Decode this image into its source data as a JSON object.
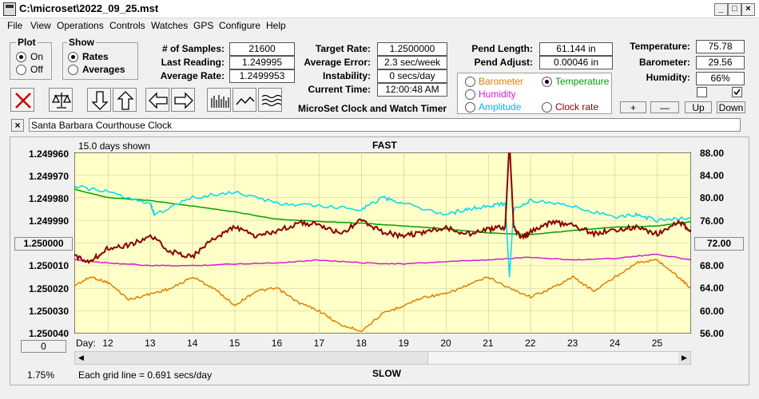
{
  "window": {
    "title": "C:\\microset\\2022_09_25.mst"
  },
  "menu": [
    "File",
    "View",
    "Operations",
    "Controls",
    "Watches",
    "GPS",
    "Configure",
    "Help"
  ],
  "plot": {
    "label": "Plot",
    "on": "On",
    "off": "Off",
    "selected": "on"
  },
  "show": {
    "label": "Show",
    "rates": "Rates",
    "averages": "Averages",
    "selected": "rates"
  },
  "stats": {
    "samples_label": "# of Samples:",
    "samples": "21600",
    "last_label": "Last Reading:",
    "last": "1.249995",
    "avg_label": "Average Rate:",
    "avg": "1.2499953",
    "target_label": "Target Rate:",
    "target": "1.2500000",
    "error_label": "Average Error:",
    "error": "2.3 sec/week",
    "instab_label": "Instability:",
    "instab": "0 secs/day",
    "time_label": "Current Time:",
    "time": "12:00:48 AM",
    "pendlen_label": "Pend Length:",
    "pendlen": "61.144 in",
    "pendadj_label": "Pend Adjust:",
    "pendadj": "0.00046 in",
    "temp_label": "Temperature:",
    "temp": "75.78",
    "baro_label": "Barometer:",
    "baro": "29.56",
    "hum_label": "Humidity:",
    "hum": "66%"
  },
  "app_name": "MicroSet Clock and Watch Timer",
  "series_options": {
    "barometer": {
      "label": "Barometer",
      "color": "#e07f00"
    },
    "temperature": {
      "label": "Temperature",
      "color": "#00a000"
    },
    "humidity": {
      "label": "Humidity",
      "color": "#d020d0"
    },
    "amplitude": {
      "label": "Amplitude",
      "color": "#00b8d8"
    },
    "clockrate": {
      "label": "Clock rate",
      "color": "#8a0000"
    },
    "selected": "temperature"
  },
  "adjust_buttons": {
    "plus": "+",
    "minus": "—",
    "up": "Up",
    "down": "Down"
  },
  "checkboxes": [
    false,
    true
  ],
  "clock_name": "Santa Barbara Courthouse Clock",
  "clear_label": "×",
  "chart": {
    "days_shown": "15.0 days shown",
    "top_label": "FAST",
    "bottom_label": "SLOW",
    "left_axis": [
      "1.249960",
      "1.249970",
      "1.249980",
      "1.249990",
      "1.250000",
      "1.250010",
      "1.250020",
      "1.250030",
      "1.250040"
    ],
    "right_axis": [
      "88.00",
      "84.00",
      "80.00",
      "76.00",
      "72.00",
      "68.00",
      "64.00",
      "60.00",
      "56.00"
    ],
    "day_label": "Day:",
    "days": [
      "12",
      "13",
      "14",
      "15",
      "16",
      "17",
      "18",
      "19",
      "20",
      "21",
      "22",
      "23",
      "24",
      "25"
    ],
    "grid_note": "Each grid line = 0.691 secs/day",
    "zoom": "1.75%",
    "offset_btn": "0",
    "center_left": "1.250000",
    "center_right": "72.00"
  },
  "chart_data": {
    "type": "line",
    "x_label": "Day",
    "x_range": [
      11.2,
      25.8
    ],
    "y_left_range": [
      1.24996,
      1.25004
    ],
    "y_left_inverted": true,
    "y_right_range": [
      56,
      88
    ],
    "series": [
      {
        "name": "Clock rate",
        "axis": "left",
        "color": "#8a0000",
        "x": [
          11.2,
          11.6,
          12,
          12.5,
          13,
          13.5,
          14,
          14.5,
          15,
          15.5,
          16,
          16.5,
          17,
          17.5,
          18,
          18.5,
          19,
          19.5,
          20,
          20.5,
          21,
          21.4,
          21.5,
          21.6,
          21.8,
          22,
          22.5,
          23,
          23.5,
          24,
          24.5,
          25,
          25.5,
          25.8
        ],
        "y": [
          1.250006,
          1.250008,
          1.250002,
          1.250001,
          1.249997,
          1.250004,
          1.250006,
          1.249998,
          1.249993,
          1.249997,
          1.249995,
          1.249991,
          1.249992,
          1.249996,
          1.24999,
          1.249995,
          1.249997,
          1.249995,
          1.249993,
          1.249996,
          1.249994,
          1.249993,
          1.249955,
          1.249993,
          1.249998,
          1.249995,
          1.249991,
          1.249992,
          1.249996,
          1.249994,
          1.249993,
          1.249996,
          1.249991,
          1.249994
        ]
      },
      {
        "name": "Temperature",
        "axis": "right",
        "color": "#00a000",
        "x": [
          11.2,
          12,
          13,
          14,
          15,
          16,
          17,
          18,
          19,
          20,
          21,
          22,
          23,
          24,
          25,
          25.8
        ],
        "y": [
          81.5,
          80,
          79.5,
          78.5,
          77.5,
          76.2,
          75.8,
          75.5,
          75,
          74.5,
          73.8,
          73.5,
          74.2,
          74.8,
          75,
          75.8
        ]
      },
      {
        "name": "Amplitude",
        "axis": "right",
        "color": "#00d8f0",
        "x": [
          11.2,
          12,
          13,
          13.1,
          14,
          15,
          16,
          17,
          18,
          18.5,
          19,
          20,
          20.5,
          21,
          21.4,
          21.5,
          21.6,
          22,
          23,
          24,
          24.5,
          25,
          25.8
        ],
        "y": [
          82,
          81,
          79,
          77,
          80,
          81,
          79,
          78.5,
          78,
          80,
          79,
          77,
          78,
          78.5,
          79,
          66,
          78,
          79.5,
          78.5,
          76.5,
          77,
          76,
          76.5
        ]
      },
      {
        "name": "Humidity",
        "axis": "right",
        "color": "#d020d0",
        "x": [
          11.2,
          12,
          13,
          14,
          15,
          16,
          17,
          18,
          19,
          20,
          21,
          22,
          23,
          24,
          25,
          25.8
        ],
        "y": [
          69,
          68.5,
          68,
          68,
          68.3,
          68.5,
          69,
          68.5,
          68.3,
          68.7,
          69,
          69.5,
          69,
          69.3,
          70,
          69
        ]
      },
      {
        "name": "Barometer",
        "axis": "right",
        "color": "#e07f00",
        "x": [
          11.2,
          11.6,
          12,
          12.5,
          13,
          13.5,
          14,
          14.5,
          15,
          15.5,
          16,
          16.5,
          17,
          17.5,
          18,
          18.5,
          19,
          19.5,
          20,
          20.5,
          21,
          21.5,
          22,
          22.5,
          23,
          23.5,
          24,
          24.5,
          25,
          25.5,
          25.8
        ],
        "y": [
          64.5,
          66,
          65,
          62,
          63,
          64,
          66,
          64,
          61,
          63.5,
          64,
          61.5,
          60,
          57.5,
          56.5,
          59.5,
          61,
          62.5,
          63,
          64.5,
          66,
          64,
          62.5,
          64,
          66,
          63.5,
          66,
          68.5,
          69,
          66,
          64
        ]
      }
    ]
  }
}
